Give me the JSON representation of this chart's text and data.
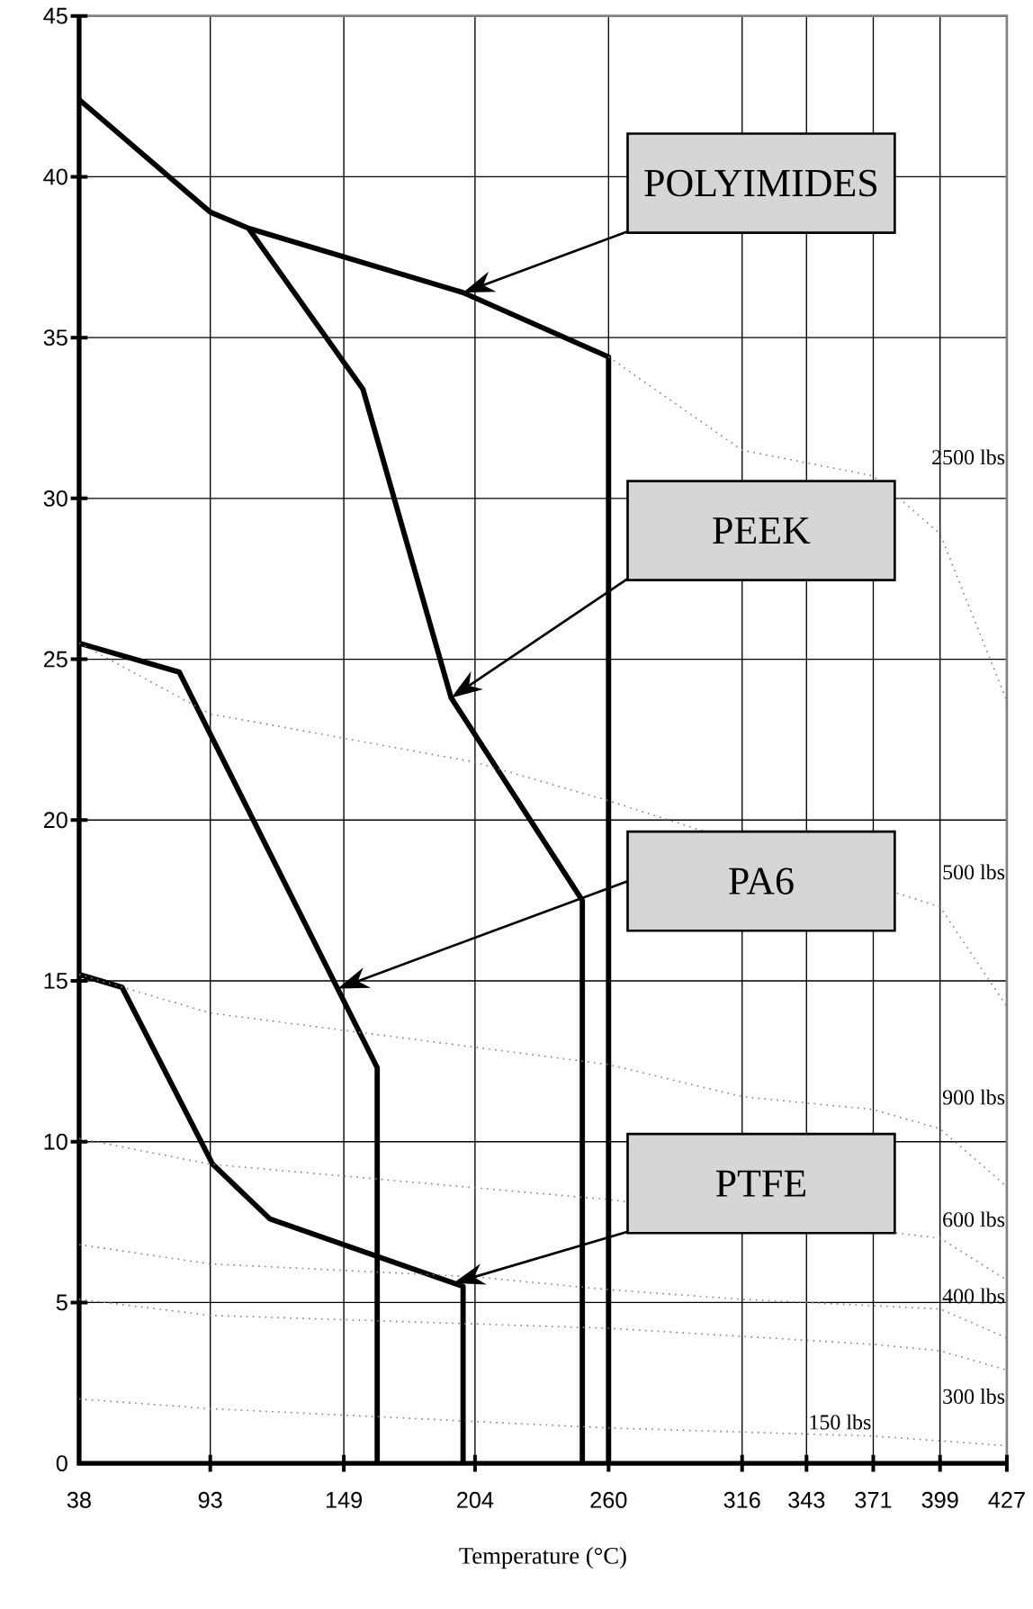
{
  "chart_data": {
    "type": "line",
    "xlabel": "Temperature (°C)",
    "xlim": [
      38,
      427
    ],
    "xticks": [
      38,
      93,
      149,
      204,
      260,
      316,
      343,
      371,
      399,
      427
    ],
    "ylim": [
      0,
      45
    ],
    "yticks": [
      0,
      5,
      10,
      15,
      20,
      25,
      30,
      35,
      40,
      45
    ],
    "grid": true,
    "series": [
      {
        "name": "POLYIMIDES",
        "color": "#000000",
        "line_style": "solid",
        "x": [
          38,
          93,
          109,
          199,
          260,
          260
        ],
        "values": [
          42.4,
          38.9,
          38.4,
          36.4,
          34.4,
          0
        ]
      },
      {
        "name": "PEEK",
        "color": "#000000",
        "line_style": "solid",
        "x": [
          109,
          157,
          194,
          249,
          249
        ],
        "values": [
          38.4,
          33.4,
          23.8,
          17.5,
          0
        ]
      },
      {
        "name": "PA6",
        "color": "#000000",
        "line_style": "solid",
        "x": [
          38,
          80,
          163,
          163
        ],
        "values": [
          25.5,
          24.6,
          12.3,
          0
        ]
      },
      {
        "name": "PTFE",
        "color": "#000000",
        "line_style": "solid",
        "x": [
          38,
          56,
          94,
          118,
          199,
          199
        ],
        "values": [
          15.2,
          14.8,
          9.3,
          7.6,
          5.5,
          0
        ]
      },
      {
        "name": "2500  lbs",
        "color": "#808080",
        "line_style": "dotted",
        "x": [
          260,
          316,
          371,
          399,
          427
        ],
        "values": [
          34.4,
          31.5,
          30.7,
          28.9,
          23.7
        ]
      },
      {
        "name": "500  lbs",
        "color": "#808080",
        "line_style": "dotted",
        "x": [
          38,
          93,
          204,
          260,
          399,
          427
        ],
        "values": [
          25.5,
          23.3,
          21.8,
          20.6,
          17.3,
          14.2
        ]
      },
      {
        "name": "900  lbs",
        "color": "#808080",
        "line_style": "dotted",
        "x": [
          38,
          93,
          260,
          316,
          371,
          399,
          427
        ],
        "values": [
          15.2,
          14.0,
          12.4,
          11.4,
          11.0,
          10.4,
          8.6
        ]
      },
      {
        "name": "600  lbs",
        "color": "#808080",
        "line_style": "dotted",
        "x": [
          38,
          93,
          260,
          399,
          427
        ],
        "values": [
          10.1,
          9.3,
          8.2,
          7.0,
          5.7
        ]
      },
      {
        "name": "400  lbs",
        "color": "#808080",
        "line_style": "dotted",
        "x": [
          38,
          93,
          204,
          260,
          316,
          371,
          399,
          427
        ],
        "values": [
          6.8,
          6.2,
          5.8,
          5.4,
          5.1,
          4.9,
          4.8,
          3.9
        ]
      },
      {
        "name": "300  lbs",
        "color": "#808080",
        "line_style": "dotted",
        "x": [
          38,
          93,
          260,
          371,
          399,
          427
        ],
        "values": [
          5.1,
          4.6,
          4.2,
          3.7,
          3.5,
          2.9
        ]
      },
      {
        "name": "150  lbs",
        "color": "#808080",
        "line_style": "dotted",
        "x": [
          38,
          93,
          260,
          371,
          427
        ],
        "values": [
          2.0,
          1.7,
          1.1,
          0.85,
          0.55
        ]
      }
    ]
  }
}
